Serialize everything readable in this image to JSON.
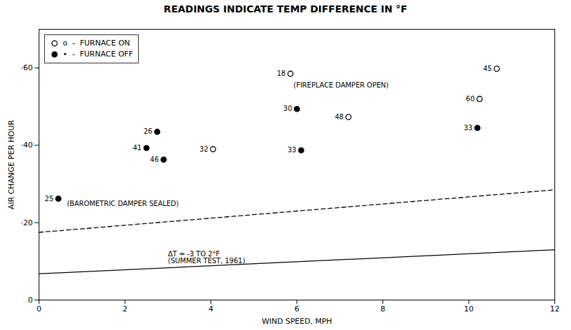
{
  "chart_data": {
    "type": "scatter",
    "title": "READINGS INDICATE TEMP DIFFERENCE IN °F",
    "xlabel": "WIND SPEED, MPH",
    "ylabel": "AIR CHANGE PER HOUR",
    "xlim": [
      0,
      12
    ],
    "ylim": [
      0,
      0.7
    ],
    "xticks": [
      0,
      2,
      4,
      6,
      8,
      10,
      12
    ],
    "yticks": [
      0,
      {
        "value": 0.2,
        "label": "·20"
      },
      {
        "value": 0.4,
        "label": "·40"
      },
      {
        "value": 0.6,
        "label": "·60"
      }
    ],
    "grid": false,
    "legend": "top-left",
    "series": [
      {
        "name": "o  -  FURNACE ON",
        "type": "scatter",
        "marker": "circle_open",
        "color": "#000000",
        "x": [
          5.85,
          4.05,
          7.2,
          10.25,
          10.65
        ],
        "values": [
          0.585,
          0.39,
          0.473,
          0.52,
          0.598
        ],
        "temp_diff": [
          18,
          32,
          48,
          60,
          45
        ]
      },
      {
        "name": "•  -  FURNACE OFF",
        "type": "scatter",
        "marker": "circle_filled",
        "color": "#000000",
        "x": [
          2.75,
          2.5,
          2.9,
          6.0,
          6.1,
          10.2,
          0.45
        ],
        "values": [
          0.435,
          0.393,
          0.363,
          0.494,
          0.387,
          0.445,
          0.262
        ],
        "temp_diff": [
          26,
          41,
          46,
          30,
          33,
          33,
          25
        ]
      },
      {
        "type": "line",
        "line_style": "solid",
        "color": "#000000",
        "x": [
          0,
          12
        ],
        "values": [
          0.068,
          0.13
        ]
      },
      {
        "type": "line",
        "line_style": "dashed",
        "color": "#000000",
        "x": [
          0,
          12
        ],
        "values": [
          0.175,
          0.285
        ]
      }
    ],
    "annotations": [
      {
        "text": "(FIREPLACE DAMPER OPEN)",
        "x": 5.92,
        "y": 0.562
      },
      {
        "text": "(BAROMETRIC DAMPER SEALED)",
        "x": 0.65,
        "y": 0.255
      },
      {
        "text": "ΔT = -3 TO 2°F\n(SUMMER TEST, 1961)",
        "x": 3.0,
        "y": 0.125
      }
    ]
  }
}
